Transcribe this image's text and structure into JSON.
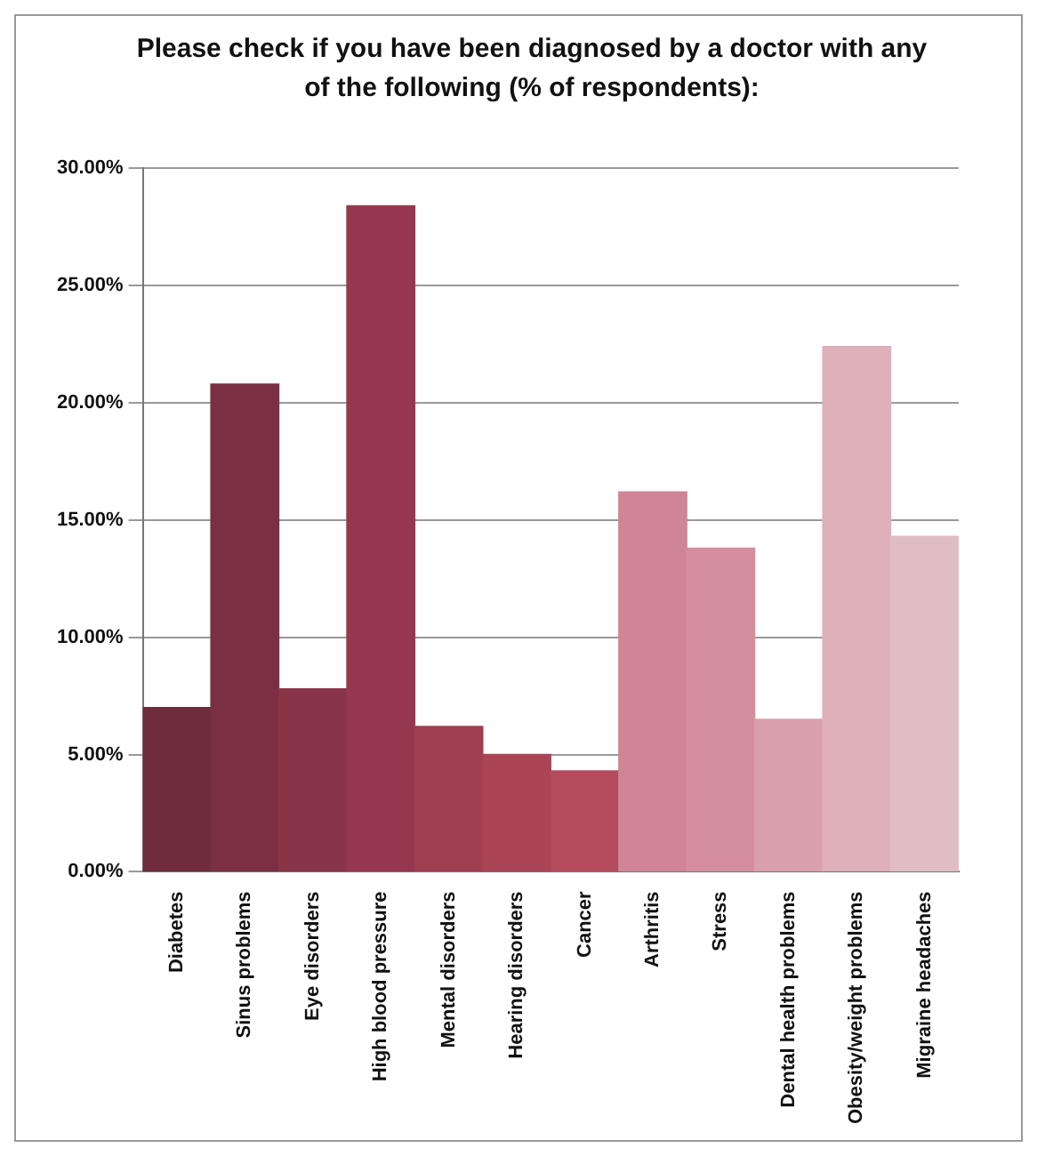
{
  "chart_data": {
    "type": "bar",
    "title": "Please check if you have been diagnosed by a doctor with any of the following (% of respondents):",
    "categories": [
      "Diabetes",
      "Sinus problems",
      "Eye disorders",
      "High blood pressure",
      "Mental disorders",
      "Hearing disorders",
      "Cancer",
      "Arthritis",
      "Stress",
      "Dental health problems",
      "Obesity/weight problems",
      "Migraine headaches"
    ],
    "values": [
      7.0,
      20.8,
      7.8,
      28.4,
      6.2,
      5.0,
      4.3,
      16.2,
      13.8,
      6.5,
      22.4,
      14.3
    ],
    "colors": [
      "#6e2c3c",
      "#7a3042",
      "#8a3447",
      "#96384d",
      "#a03e52",
      "#aa4456",
      "#b44b5c",
      "#cf8593",
      "#d58f9c",
      "#d9a0ab",
      "#ddb0ba",
      "#e0bcc5"
    ],
    "ylim": [
      0,
      30
    ],
    "yticks": [
      {
        "value": 0,
        "label": "0.00%"
      },
      {
        "value": 5,
        "label": "5.00%"
      },
      {
        "value": 10,
        "label": "10.00%"
      },
      {
        "value": 15,
        "label": "15.00%"
      },
      {
        "value": 20,
        "label": "20.00%"
      },
      {
        "value": 25,
        "label": "25.00%"
      },
      {
        "value": 30,
        "label": "30.00%"
      }
    ],
    "grid": "y"
  }
}
